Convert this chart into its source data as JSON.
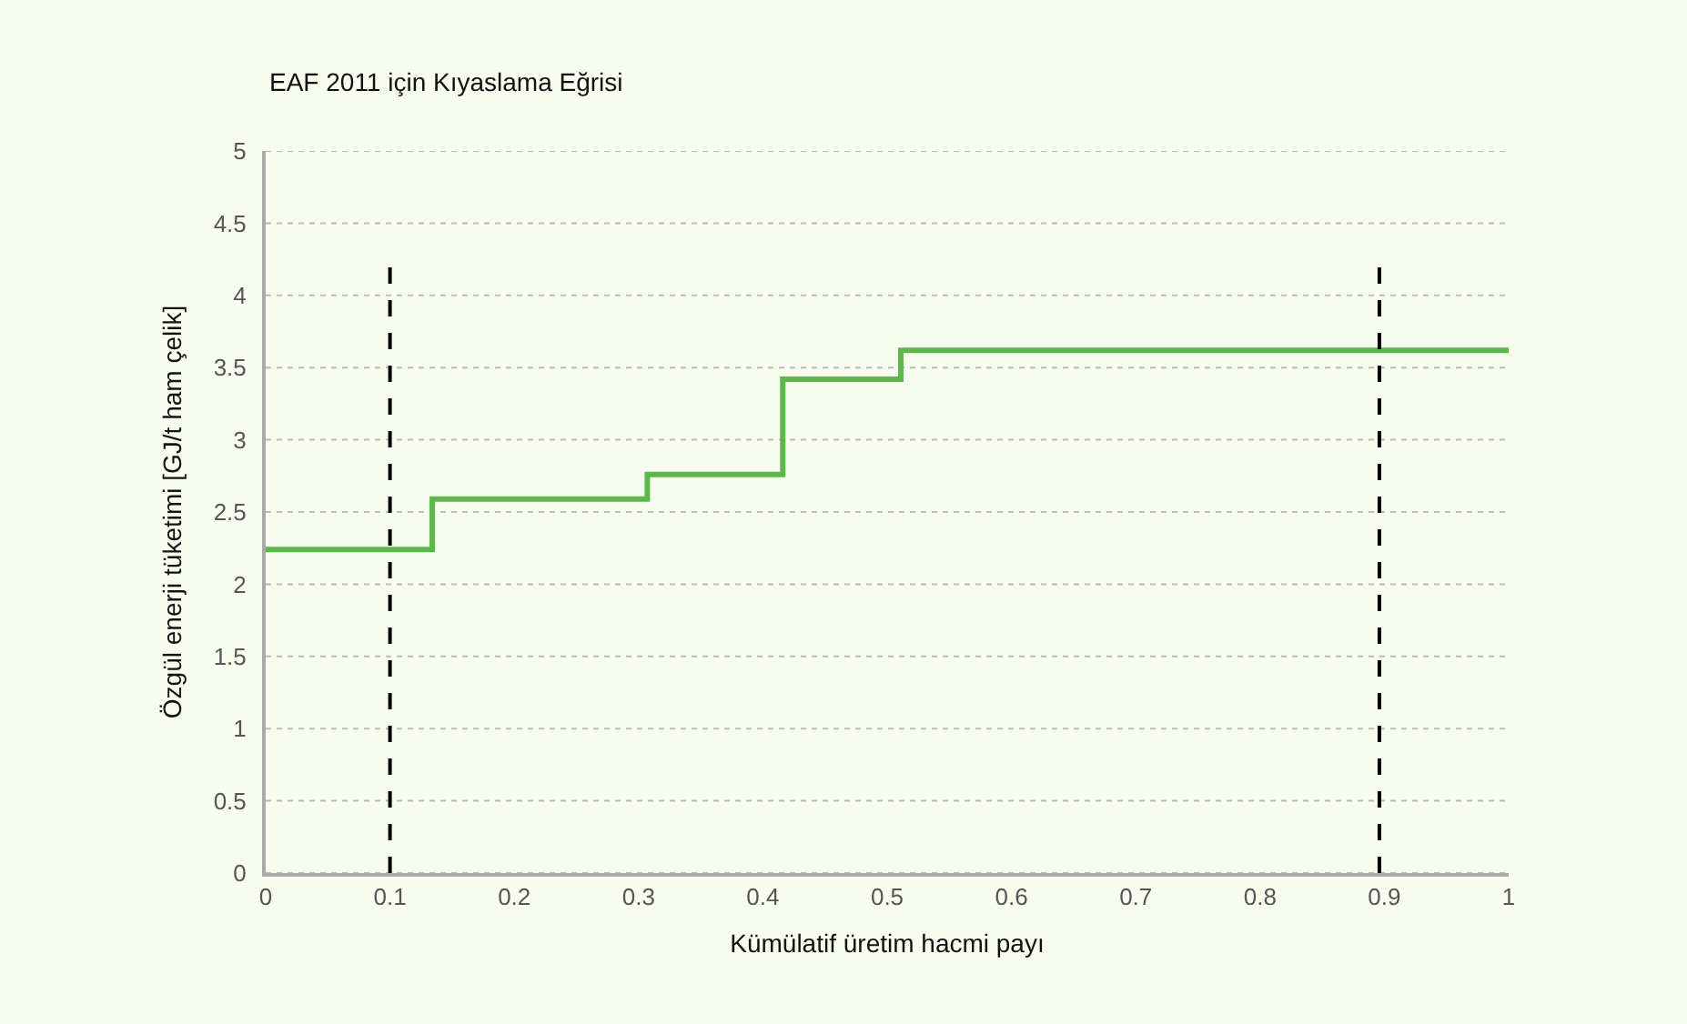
{
  "chart_data": {
    "type": "step",
    "title": "EAF 2011 için Kıyaslama Eğrisi",
    "xlabel": "Kümülatif üretim hacmi payı",
    "ylabel": "Özgül enerji tüketimi [GJ/t ham çelik]",
    "x": [
      0,
      0.134,
      0.307,
      0.416,
      0.511,
      1
    ],
    "series": [
      {
        "color": "#5ab94a",
        "values": [
          2.24,
          2.59,
          2.76,
          3.42,
          3.62,
          3.62
        ]
      }
    ],
    "xlim": [
      0,
      1
    ],
    "xticks": [
      0,
      0.1,
      0.2,
      0.3,
      0.4,
      0.5,
      0.6,
      0.7,
      0.8,
      0.9,
      1
    ],
    "ylim": [
      0,
      5
    ],
    "yticks": [
      0,
      0.5,
      1,
      1.5,
      2,
      2.5,
      3,
      3.5,
      4,
      4.5,
      5
    ],
    "grid": "y",
    "marker": "none",
    "line_style": "solid",
    "ref_lines": [
      {
        "axis": "x",
        "value": 0.1,
        "color": "#000000",
        "line_style": "dashed"
      },
      {
        "axis": "x",
        "value": 0.896,
        "color": "#000000",
        "line_style": "dashed"
      }
    ]
  }
}
